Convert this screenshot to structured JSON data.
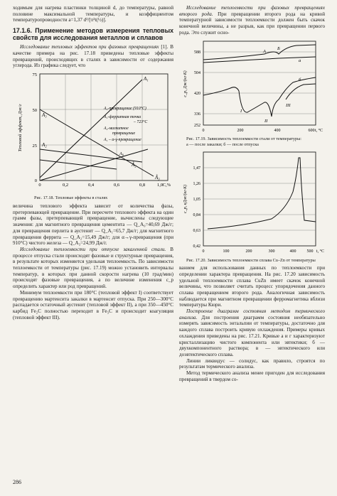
{
  "left_column": {
    "intro": "ходимым для нагрева пластинки толщиной d, до температуры, равной половине максимальной температуры, и коэффициентом температуропроводности a=1,37 d²/[π²t(½)].",
    "section_title": "17.1.6. Применение методов измерения тепловых свойств для исследования металлов и сплавов",
    "para1_italic": "Исследование тепловых эффектов при фазовых превращениях",
    "para1_rest": " [1]. В качестве примера на рис. 17.18 приведены тепловые эффекты превращений, происходящих в сталях в зависимости от содержания углерода. Из графика следует, что",
    "figure18": {
      "ylabel": "Тепловой эффект, Дж/г",
      "xlabel": "C,%",
      "yticks": [
        "75",
        "50",
        "25",
        "0"
      ],
      "xticks": [
        "0",
        "0,2",
        "0,4",
        "0,6",
        "0,8",
        "1,0"
      ],
      "labels": {
        "A1": "A₁",
        "A3": "A₃",
        "A2": "A₂",
        "A3tilde": "Ã₃",
        "A2tilde": "Ã₂",
        "l1": "A₃-превращение (910°С)",
        "l2": "A₁-ферритная точка",
        "l3": "– 723°С",
        "l4": "A₂-магнитное",
        "l5": "превращение",
        "l6": "A₁ – α-γ-превращение",
        "l7": "A₀"
      },
      "caption": "Рис. 17.18. Тепловые эффекты в сталях"
    },
    "para2": "величина теплового эффекта зависит от количества фазы, претерпевающей превращение. При пересчете теплового эффекта на один грамм фазы, претерпевающей превращение, вычислены следующие значения: для магнитного превращения цементита — Q_A₀=40,69 Дж/г; для превращения перлита в аустенит — Q_A₁=65,7 Дж/г; для магнитного превращения феррита — Q_A₂=15,49 Дж/г; для α→γ-превращения (при 910°С) чистого железа — Q_A₃=24,99 Дж/г.",
    "para3_italic": "Исследование теплоемкости при отпуске закаленной стали.",
    "para3_rest": " В процессе отпуска стали происходят фазовые и структурные превращения, в результате которых изменяется удельная теплоемкость. По зависимости теплоемкости от температуры (рис. 17.19) можно установить интервалы температур, в которых при данной скорости нагрева (10 град/мин) происходят фазовые превращения, а по величине изменения c_p определить характер или род превращений.",
    "para4": "Минимум теплоемкости при 180°С (тепловой эффект I) соответствует превращению мартенсита закалки в мартенсит отпуска. При 250—300°С распадается остаточный аустенит (тепловой эффект II), а при 350—450°С карбид Fe₂C полностью переходит в Fe₃C и происходит коагуляция (тепловой эффект III)."
  },
  "right_column": {
    "para1_italic": "Исследование теплоемкости при фазовых превращениях второго рода.",
    "para1_rest": " При превращении второго рода на кривой температурной зависимости теплоемкости должен быть скачок конечной величины, а не разрыв, как при превращении первого рода. Это служит осно-",
    "figure19": {
      "ylabel": "c_p, Дж/(кг·К)",
      "xlabel": "t, °C",
      "yticks": [
        "588",
        "504",
        "420",
        "336",
        "252"
      ],
      "xticks": [
        "0",
        "200",
        "400",
        "600"
      ],
      "curve_labels": [
        "A",
        "Б",
        "а",
        "б",
        "I",
        "II",
        "III"
      ],
      "caption": "Рис. 17.19. Зависимость теплоемкости стали от температуры:",
      "caption2": "а — после закалки; б — после отпуска"
    },
    "figure20": {
      "ylabel": "c_p, кДж/(кг·К)",
      "xlabel": "t, °C",
      "yticks": [
        "1,47",
        "1,26",
        "1,05",
        "0,84",
        "0,63",
        "0,42"
      ],
      "xticks": [
        "0",
        "100",
        "200",
        "300",
        "400",
        "500"
      ],
      "caption": "Рис. 17.20. Зависимость теплоемкости сплава Cu–Zn от температуры"
    },
    "para2": "ванием для использования данных по теплоемкости при определении характера превращения. На рис. 17.20 зависимость удельной теплоемкости сплава CuZn имеет скачок конечной величины, что позволяет считать процесс упорядочения данного сплава превращением второго рода. Аналогичная зависимость наблюдается при магнитном превращении ферромагнетика вблизи температуры Кюри.",
    "para3_italic": "Построение диаграмм состояния методом термического анализа.",
    "para3_rest": " Для построения диаграмм состояния необязательно измерять зависимость энтальпии от температуры, достаточно для каждого сплава построить кривую охлаждения. Примеры кривых охлаждения приведены на рис. 17.21. Кривые a и г характеризуют кристаллизацию чистого компонента или эвтектики; б — двухкомпонентного раствора; в — эвтектического или доэвтектического сплава.",
    "para4": "Линии ликвидус — солидус, как правило, строятся по результатам термического анализа.",
    "para5": "Метод термического анализа менее пригоден для исследования превращений в твердом со-"
  },
  "page_number": "286"
}
